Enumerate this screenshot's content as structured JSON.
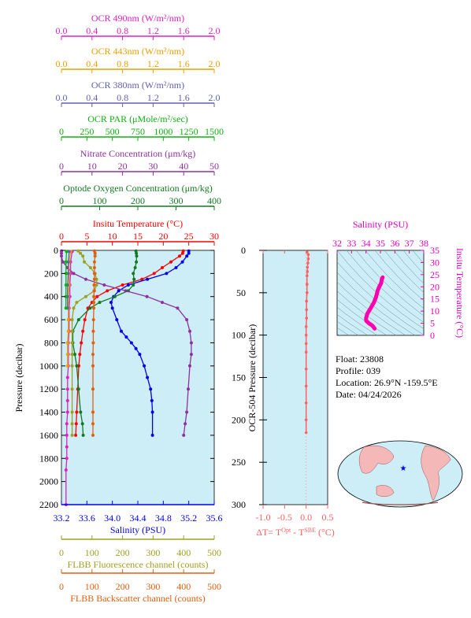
{
  "colors": {
    "ocr490": "#e020c0",
    "ocr443": "#e8a000",
    "ocr380": "#6060b0",
    "par": "#10b010",
    "nitrate": "#9030a0",
    "oxygen": "#107a20",
    "temp": "#ff0000",
    "salinity": "#0000ee",
    "fl": "#a0a020",
    "bb": "#e06010",
    "panel": "#cdeef6",
    "dt": "#ff6060",
    "theta": "#ff00b0"
  },
  "top_axes": [
    {
      "key": "ocr490",
      "title": "OCR 490nm (W/m²/nm)",
      "ticks": [
        "0.0",
        "0.4",
        "0.8",
        "1.2",
        "1.6",
        "2.0"
      ]
    },
    {
      "key": "ocr443",
      "title": "OCR 443nm (W/m²/nm)",
      "ticks": [
        "0.0",
        "0.4",
        "0.8",
        "1.2",
        "1.6",
        "2.0"
      ]
    },
    {
      "key": "ocr380",
      "title": "OCR 380nm (W/m²/nm)",
      "ticks": [
        "0.0",
        "0.4",
        "0.8",
        "1.2",
        "1.6",
        "2.0"
      ]
    },
    {
      "key": "par",
      "title": "OCR PAR (μMole/m²/sec)",
      "ticks": [
        "0",
        "250",
        "500",
        "750",
        "1000",
        "1250",
        "1500"
      ]
    },
    {
      "key": "nitrate",
      "title": "Nitrate Concentration (μm/kg)",
      "ticks": [
        "0",
        "10",
        "20",
        "30",
        "40",
        "50"
      ]
    },
    {
      "key": "oxygen",
      "title": "Optode Oxygen Concentration (μm/kg)",
      "ticks": [
        "0",
        "100",
        "200",
        "300",
        "400"
      ]
    },
    {
      "key": "temp",
      "title": "Insitu Temperature (°C)",
      "ticks": [
        "0",
        "5",
        "10",
        "15",
        "20",
        "25",
        "30"
      ]
    }
  ],
  "bottom_axes": [
    {
      "key": "salinity",
      "title": "Salinity (PSU)",
      "ticks": [
        "33.2",
        "33.6",
        "34.0",
        "34.4",
        "34.8",
        "35.2",
        "35.6"
      ]
    },
    {
      "key": "fl",
      "title": "FLBB Fluorescence channel (counts)",
      "ticks": [
        "0",
        "100",
        "200",
        "300",
        "400",
        "500"
      ]
    },
    {
      "key": "bb",
      "title": "FLBB Backscatter channel (counts)",
      "ticks": [
        "0",
        "100",
        "200",
        "300",
        "400",
        "500"
      ]
    }
  ],
  "main_panel": {
    "ylabel": "Pressure (decibar)",
    "yticks": [
      "0",
      "200",
      "400",
      "600",
      "800",
      "1000",
      "1200",
      "1400",
      "1600",
      "1800",
      "2000",
      "2200"
    ]
  },
  "dt_panel": {
    "ylabel": "OCR-504 Pressure (decibar)",
    "yticks": [
      "0",
      "50",
      "100",
      "150",
      "200",
      "250",
      "300"
    ],
    "xticks": [
      "-1.0",
      "-0.5",
      "0.0",
      "0.5"
    ],
    "xlabel_main": "ΔT= T",
    "xlabel_sup1": "Opt",
    "xlabel_mid": " - T",
    "xlabel_sup2": "SBE",
    "xlabel_end": " (°C)"
  },
  "ts_panel": {
    "xlabel": "Salinity (PSU)",
    "xticks": [
      "32",
      "33",
      "34",
      "35",
      "36",
      "37",
      "38"
    ],
    "ylabel": "Insitu Temperature (°C)",
    "yticks": [
      "0",
      "5",
      "10",
      "15",
      "20",
      "25",
      "30",
      "35"
    ]
  },
  "info": {
    "float": "Float:  23808",
    "profile": "Profile:  039",
    "location": "Location:  26.9°N  -159.5°E",
    "date": "Date:  04/24/2026"
  },
  "chart_data": {
    "type": "line",
    "y_axis": "Pressure (decibar)",
    "ylim": [
      2200,
      0
    ],
    "series": [
      {
        "name": "Insitu Temperature (°C)",
        "key": "temp",
        "xlim": [
          0,
          30
        ],
        "x": [
          23.9,
          23.8,
          23.2,
          21.5,
          19.8,
          18.2,
          15.8,
          12.0,
          9.0,
          7.0,
          6.0,
          5.2,
          4.6,
          4.2,
          3.9,
          3.6,
          3.4,
          3.2,
          3.0,
          2.9,
          2.8
        ],
        "y": [
          5,
          25,
          50,
          100,
          150,
          200,
          250,
          300,
          350,
          400,
          450,
          500,
          600,
          700,
          800,
          900,
          1000,
          1200,
          1400,
          1500,
          1600
        ]
      },
      {
        "name": "Salinity (PSU)",
        "key": "salinity",
        "xlim": [
          33.2,
          35.6
        ],
        "x": [
          35.2,
          35.2,
          35.17,
          35.1,
          35.0,
          34.85,
          34.55,
          34.25,
          34.1,
          34.02,
          33.98,
          34.0,
          34.07,
          34.14,
          34.22,
          34.3,
          34.37,
          34.43,
          34.5,
          34.55,
          34.6,
          34.62,
          34.63,
          34.63
        ],
        "y": [
          5,
          25,
          50,
          100,
          150,
          200,
          250,
          300,
          350,
          400,
          450,
          500,
          600,
          700,
          750,
          800,
          850,
          900,
          1000,
          1100,
          1200,
          1300,
          1400,
          1600
        ]
      },
      {
        "name": "Optode Oxygen Concentration (μm/kg)",
        "key": "oxygen",
        "xlim": [
          0,
          400
        ],
        "x": [
          195,
          196,
          197,
          196,
          193,
          188,
          190,
          188,
          175,
          140,
          100,
          75,
          45,
          30,
          30,
          35,
          40,
          45,
          50,
          55,
          57
        ],
        "y": [
          5,
          25,
          50,
          100,
          150,
          200,
          250,
          300,
          350,
          400,
          450,
          500,
          600,
          700,
          800,
          900,
          1000,
          1200,
          1400,
          1500,
          1600
        ]
      },
      {
        "name": "Nitrate Concentration (μm/kg)",
        "key": "nitrate",
        "xlim": [
          0,
          50
        ],
        "x": [
          0,
          0,
          0,
          0.5,
          2,
          4,
          8,
          14,
          21,
          28,
          33,
          38,
          41,
          42,
          42.5,
          42.5,
          42,
          41.5,
          41,
          40.5,
          40
        ],
        "y": [
          5,
          25,
          50,
          100,
          150,
          200,
          250,
          300,
          350,
          400,
          450,
          500,
          600,
          700,
          800,
          900,
          1000,
          1200,
          1400,
          1500,
          1600
        ]
      },
      {
        "name": "FLBB Fluorescence channel (counts)",
        "key": "fl",
        "xlim": [
          0,
          500
        ],
        "x": [
          55,
          62,
          70,
          75,
          95,
          110,
          115,
          115,
          108,
          80,
          50,
          40,
          35,
          35,
          35,
          35,
          35,
          35,
          35,
          35,
          35
        ],
        "y": [
          5,
          25,
          50,
          100,
          150,
          200,
          250,
          300,
          350,
          400,
          450,
          500,
          600,
          700,
          800,
          900,
          1000,
          1200,
          1400,
          1500,
          1600
        ]
      },
      {
        "name": "FLBB Backscatter channel (counts)",
        "key": "bb",
        "xlim": [
          0,
          500
        ],
        "x": [
          108,
          110,
          110,
          108,
          108,
          108,
          108,
          107,
          107,
          106,
          106,
          106,
          105,
          104,
          104,
          103,
          103,
          103,
          103,
          103,
          103
        ],
        "y": [
          5,
          25,
          50,
          100,
          150,
          200,
          250,
          300,
          350,
          400,
          450,
          500,
          600,
          700,
          800,
          900,
          1000,
          1200,
          1400,
          1500,
          1600
        ]
      },
      {
        "name": "OCR 490nm (W/m²/nm)",
        "key": "ocr490",
        "xlim": [
          0,
          2
        ],
        "x": [
          0.14,
          0.12,
          0.12,
          0.11,
          0.11,
          0.1,
          0.1,
          0.1,
          0.09,
          0.09,
          0.09,
          0.08,
          0.08,
          0.08,
          0.08,
          0.07,
          0.07,
          0.07,
          0.07,
          0.06,
          0.06
        ],
        "y": [
          10,
          100,
          200,
          300,
          400,
          500,
          600,
          700,
          800,
          900,
          1000,
          1100,
          1200,
          1300,
          1400,
          1500,
          1600,
          1700,
          1800,
          1900,
          2200
        ]
      },
      {
        "name": "OCR 443nm (W/m²/nm)",
        "key": "ocr443",
        "xlim": [
          0,
          2
        ],
        "x": [
          0.12,
          0.1,
          0.1,
          0.1,
          0.09,
          0.09,
          0.09,
          0.09,
          0.08,
          0.08,
          0.08
        ],
        "y": [
          10,
          100,
          200,
          300,
          400,
          500,
          600,
          700,
          800,
          900,
          1000
        ]
      },
      {
        "name": "OCR 380nm (W/m²/nm)",
        "key": "ocr380",
        "xlim": [
          0,
          2
        ],
        "x": [
          0.1,
          0.09,
          0.09,
          0.08,
          0.08,
          0.08
        ],
        "y": [
          10,
          100,
          200,
          300,
          400,
          500
        ]
      },
      {
        "name": "OCR PAR (μMole/m²/sec)",
        "key": "par",
        "xlim": [
          0,
          1500
        ],
        "x": [
          50,
          45,
          45,
          45,
          44,
          44
        ],
        "y": [
          10,
          100,
          200,
          300,
          400,
          500
        ]
      }
    ],
    "dt_profile": {
      "xlim": [
        -1.0,
        0.5
      ],
      "ylim": [
        300,
        0
      ],
      "x": [
        0.02,
        0.05,
        0.05,
        0.04,
        0.03,
        0.03,
        0.02,
        0.02,
        0.02,
        0.01,
        0.01,
        0.01,
        0.0,
        0.0,
        0.0,
        0.0,
        0.0,
        0.0,
        0.0,
        0.0,
        0.0
      ],
      "y": [
        2,
        5,
        10,
        15,
        20,
        25,
        30,
        40,
        50,
        60,
        70,
        80,
        90,
        100,
        110,
        120,
        140,
        160,
        180,
        200,
        215
      ]
    },
    "ts_diagram": {
      "xlim": [
        32,
        38
      ],
      "ylim": [
        0,
        35
      ],
      "salinity": [
        35.15,
        35.1,
        35.05,
        34.9,
        34.8,
        34.7,
        34.55,
        34.4,
        34.25,
        34.1,
        34.0,
        34.02,
        34.2,
        34.4,
        34.5,
        34.55,
        34.6
      ],
      "temperature": [
        23.9,
        23.2,
        21.5,
        19.8,
        18.2,
        15.8,
        13.5,
        12.0,
        10.5,
        9.0,
        7.0,
        6.0,
        5.0,
        4.2,
        3.6,
        3.2,
        2.8
      ]
    }
  }
}
